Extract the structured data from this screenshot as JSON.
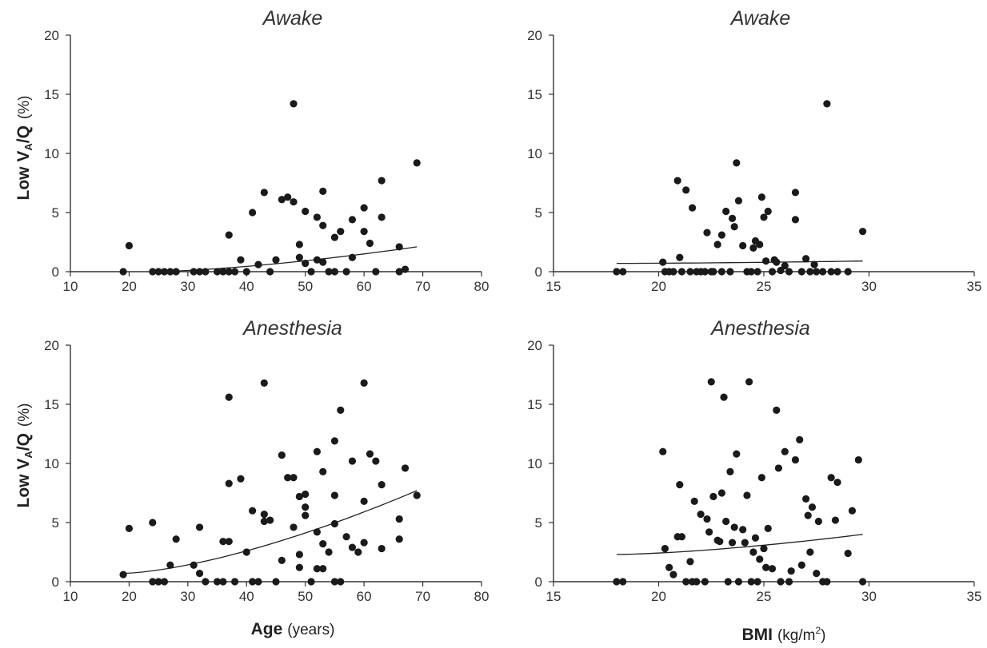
{
  "chart_data": [
    {
      "type": "scatter",
      "title": "Awake",
      "ylabel": {
        "main": "Low V",
        "sub": "A",
        "tail": "/Q",
        "unit": "(%)"
      },
      "xlim": [
        10,
        80
      ],
      "ylim": [
        0,
        20
      ],
      "x_ticks": [
        "10",
        "20",
        "30",
        "40",
        "50",
        "60",
        "70",
        "80"
      ],
      "y_ticks": [
        "0",
        "5",
        "10",
        "15",
        "20"
      ],
      "x": [
        19,
        20,
        24,
        25,
        26,
        27,
        28,
        31,
        32,
        33,
        35,
        36,
        37,
        37,
        38,
        39,
        40,
        41,
        42,
        43,
        44,
        45,
        46,
        47,
        48,
        48,
        49,
        49,
        50,
        50,
        51,
        52,
        52,
        53,
        53,
        53,
        54,
        55,
        55,
        56,
        57,
        58,
        58,
        60,
        60,
        61,
        62,
        63,
        63,
        66,
        66,
        67,
        69
      ],
      "y": [
        0,
        2.2,
        0,
        0,
        0,
        0,
        0,
        0,
        0,
        0,
        0,
        0,
        0,
        3.1,
        0,
        1.0,
        0,
        5.0,
        0.6,
        6.7,
        0,
        1.0,
        6.1,
        6.3,
        14.2,
        5.9,
        2.3,
        1.2,
        0.7,
        5.1,
        0,
        4.6,
        1.0,
        3.9,
        6.8,
        0.8,
        0,
        2.9,
        0,
        3.4,
        0,
        1.2,
        4.4,
        5.4,
        3.4,
        2.4,
        0,
        7.7,
        4.6,
        2.1,
        0,
        0.2,
        9.2
      ],
      "trend": {
        "x": [
          24,
          69
        ],
        "y": [
          0,
          2.1
        ]
      }
    },
    {
      "type": "scatter",
      "title": "Awake",
      "xlim": [
        15,
        35
      ],
      "ylim": [
        0,
        20
      ],
      "x_ticks": [
        "15",
        "20",
        "25",
        "30",
        "35"
      ],
      "y_ticks": [
        "0",
        "5",
        "10",
        "15",
        "20"
      ],
      "x": [
        18.0,
        18.3,
        20.2,
        20.3,
        20.5,
        20.7,
        20.9,
        21.0,
        21.1,
        21.3,
        21.5,
        21.6,
        21.8,
        22.0,
        22.2,
        22.3,
        22.5,
        22.6,
        22.8,
        23.0,
        23.0,
        23.2,
        23.4,
        23.5,
        23.6,
        23.7,
        23.8,
        24.0,
        24.2,
        24.4,
        24.5,
        24.6,
        24.7,
        24.8,
        24.9,
        25.0,
        25.1,
        25.2,
        25.4,
        25.5,
        25.6,
        25.8,
        26.0,
        26.2,
        26.5,
        26.5,
        26.8,
        27.0,
        27.2,
        27.4,
        27.5,
        27.8,
        28.0,
        28.2,
        28.5,
        29.0,
        29.7
      ],
      "y": [
        0,
        0,
        0.8,
        0,
        0,
        0,
        7.7,
        1.2,
        0,
        6.9,
        0,
        5.4,
        0,
        0,
        0,
        3.3,
        0,
        0,
        2.3,
        0,
        3.1,
        5.1,
        0,
        4.5,
        3.8,
        9.2,
        6.0,
        2.2,
        0,
        0,
        2.0,
        2.6,
        0,
        2.3,
        6.3,
        4.6,
        0.9,
        5.1,
        0,
        1.0,
        0.8,
        0.1,
        0.5,
        0,
        6.7,
        4.4,
        0,
        1.1,
        0,
        0.6,
        0,
        0,
        14.2,
        0,
        0,
        0,
        3.4
      ],
      "trend": {
        "x": [
          18,
          29.7
        ],
        "y": [
          0.7,
          0.9
        ]
      }
    },
    {
      "type": "scatter",
      "title": "Anesthesia",
      "ylabel": {
        "main": "Low V",
        "sub": "A",
        "tail": "/Q",
        "unit": "(%)"
      },
      "xlabel": {
        "main": "Age",
        "unit": "(years)"
      },
      "xlim": [
        10,
        80
      ],
      "ylim": [
        0,
        20
      ],
      "x_ticks": [
        "10",
        "20",
        "30",
        "40",
        "50",
        "60",
        "70",
        "80"
      ],
      "y_ticks": [
        "0",
        "5",
        "10",
        "15",
        "20"
      ],
      "x": [
        19,
        20,
        24,
        24,
        25,
        26,
        27,
        28,
        31,
        32,
        32,
        33,
        35,
        36,
        36,
        37,
        37,
        37,
        38,
        39,
        40,
        41,
        41,
        42,
        43,
        43,
        43,
        44,
        45,
        46,
        46,
        47,
        48,
        48,
        49,
        49,
        49,
        50,
        50,
        50,
        51,
        52,
        52,
        52,
        53,
        53,
        53,
        54,
        55,
        55,
        55,
        55,
        56,
        56,
        57,
        58,
        58,
        59,
        60,
        60,
        60,
        61,
        62,
        63,
        63,
        66,
        66,
        67,
        69
      ],
      "y": [
        0.6,
        4.5,
        5.0,
        0,
        0,
        0,
        1.4,
        3.6,
        1.4,
        4.6,
        0.7,
        0,
        0,
        0,
        3.4,
        15.6,
        8.3,
        3.4,
        0,
        8.7,
        2.5,
        0,
        6.0,
        0,
        5.7,
        5.1,
        16.8,
        5.2,
        0,
        10.7,
        1.8,
        8.8,
        4.6,
        8.8,
        1.2,
        2.3,
        7.2,
        5.6,
        7.4,
        6.3,
        0,
        11.0,
        4.2,
        1.1,
        9.3,
        3.2,
        1.1,
        2.5,
        11.9,
        7.3,
        4.9,
        0,
        14.5,
        0,
        3.8,
        10.2,
        2.9,
        2.5,
        16.8,
        6.8,
        3.3,
        10.8,
        10.2,
        8.2,
        2.8,
        5.3,
        3.6,
        9.6,
        7.3
      ],
      "trend": {
        "x": [
          19,
          69
        ],
        "y": [
          0.7,
          7.7
        ]
      }
    },
    {
      "type": "scatter",
      "title": "Anesthesia",
      "xlabel": {
        "main": "BMI",
        "unit": "(kg/m",
        "sup": "2",
        "close": ")"
      },
      "xlim": [
        15,
        35
      ],
      "ylim": [
        0,
        20
      ],
      "x_ticks": [
        "15",
        "20",
        "25",
        "30",
        "35"
      ],
      "y_ticks": [
        "0",
        "5",
        "10",
        "15",
        "20"
      ],
      "x": [
        18.0,
        18.3,
        20.2,
        20.3,
        20.5,
        20.7,
        20.9,
        21.0,
        21.1,
        21.3,
        21.5,
        21.6,
        21.7,
        21.8,
        22.0,
        22.2,
        22.3,
        22.4,
        22.5,
        22.6,
        22.8,
        22.9,
        23.0,
        23.1,
        23.2,
        23.3,
        23.4,
        23.5,
        23.6,
        23.7,
        23.8,
        24.0,
        24.1,
        24.2,
        24.3,
        24.4,
        24.5,
        24.6,
        24.7,
        24.8,
        24.9,
        25.0,
        25.1,
        25.2,
        25.4,
        25.6,
        25.7,
        25.8,
        26.0,
        26.2,
        26.3,
        26.5,
        26.7,
        26.8,
        27.0,
        27.1,
        27.2,
        27.3,
        27.5,
        27.6,
        27.8,
        28.0,
        28.2,
        28.4,
        28.5,
        29.0,
        29.2,
        29.5,
        29.7
      ],
      "y": [
        0,
        0,
        11.0,
        2.8,
        1.2,
        0.6,
        3.8,
        8.2,
        3.8,
        0,
        1.7,
        0,
        6.8,
        0,
        5.7,
        0,
        5.3,
        4.2,
        16.9,
        7.2,
        3.5,
        3.4,
        7.5,
        15.6,
        5.1,
        0,
        9.3,
        3.3,
        4.6,
        10.8,
        0,
        4.4,
        3.3,
        7.3,
        16.9,
        0,
        2.5,
        3.7,
        0,
        1.9,
        8.8,
        2.8,
        1.2,
        4.5,
        1.1,
        14.5,
        9.6,
        0,
        11.0,
        0,
        0.9,
        10.3,
        12.0,
        1.4,
        7.0,
        5.6,
        2.5,
        6.3,
        0.7,
        5.1,
        0,
        0,
        8.8,
        5.2,
        8.4,
        2.4,
        6.0,
        10.3,
        0
      ],
      "trend": {
        "x": [
          18,
          29.7
        ],
        "y": [
          2.3,
          4.0
        ]
      }
    }
  ]
}
